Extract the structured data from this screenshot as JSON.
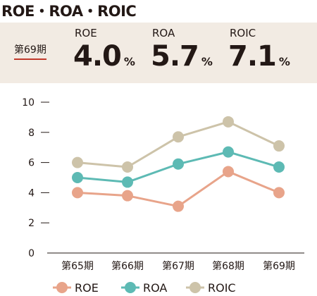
{
  "title": "ROE・ROA・ROIC",
  "summary": {
    "period": "第69期",
    "metrics": [
      {
        "label": "ROE",
        "value": "4.0",
        "unit": "%"
      },
      {
        "label": "ROA",
        "value": "5.7",
        "unit": "%"
      },
      {
        "label": "ROIC",
        "value": "7.1",
        "unit": "%"
      }
    ]
  },
  "colors": {
    "ROE": "#e8a48a",
    "ROA": "#5dbab4",
    "ROIC": "#cdc3a9",
    "axis": "#231815",
    "panel": "#f2ebe3"
  },
  "chart_data": {
    "type": "line",
    "categories": [
      "第65期",
      "第66期",
      "第67期",
      "第68期",
      "第69期"
    ],
    "series": [
      {
        "name": "ROE",
        "values": [
          4.0,
          3.8,
          3.1,
          5.4,
          4.0
        ]
      },
      {
        "name": "ROA",
        "values": [
          5.0,
          4.7,
          5.9,
          6.7,
          5.7
        ]
      },
      {
        "name": "ROIC",
        "values": [
          6.0,
          5.7,
          7.7,
          8.7,
          7.1
        ]
      }
    ],
    "yticks": [
      "0",
      "2",
      "4",
      "6",
      "8",
      "10"
    ],
    "ylim": [
      0,
      10
    ],
    "legend_position": "bottom",
    "grid": false
  }
}
